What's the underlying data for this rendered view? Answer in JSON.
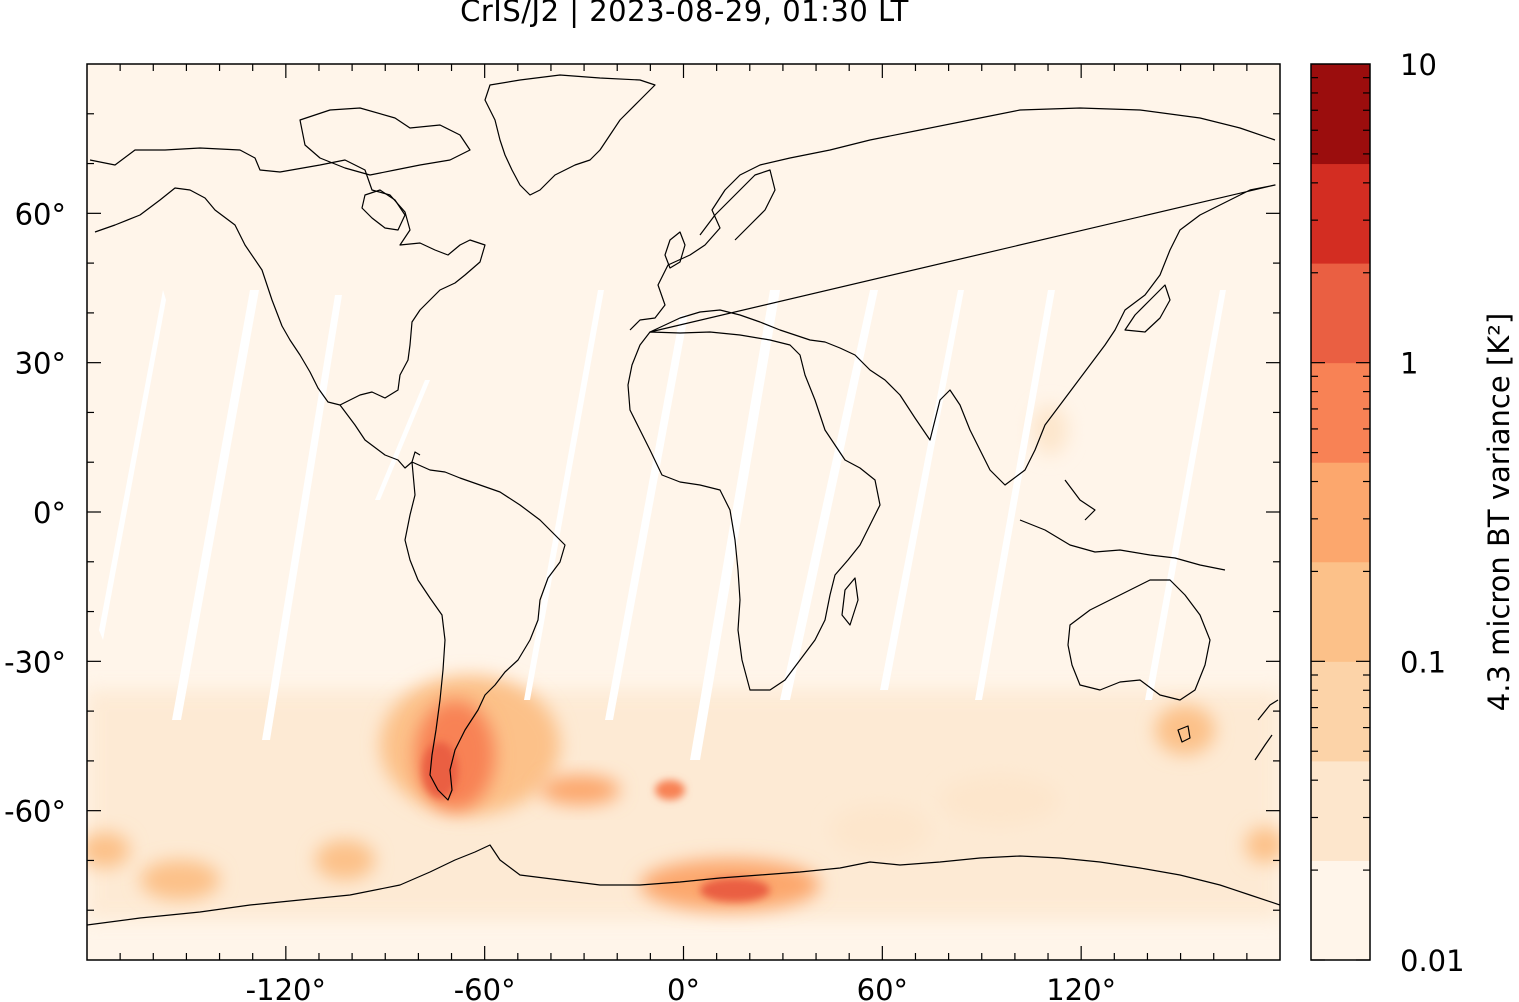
{
  "title": "CrIS/J2 | 2023-08-29, 01:30 LT",
  "map": {
    "projection": "equirectangular",
    "lon_range": [
      -180,
      180
    ],
    "lat_range": [
      -90,
      90
    ],
    "x_ticks": [
      {
        "value": -120,
        "label": "-120°"
      },
      {
        "value": -60,
        "label": "-60°"
      },
      {
        "value": 0,
        "label": "0°"
      },
      {
        "value": 60,
        "label": "60°"
      },
      {
        "value": 120,
        "label": "120°"
      }
    ],
    "y_ticks": [
      {
        "value": 60,
        "label": "60°"
      },
      {
        "value": 30,
        "label": "30°"
      },
      {
        "value": 0,
        "label": "0°"
      },
      {
        "value": -30,
        "label": "-30°"
      },
      {
        "value": -60,
        "label": "-60°"
      }
    ],
    "background_color": "#fff5ea",
    "coastline_color": "#000000"
  },
  "colorbar": {
    "label": "4.3 micron BT variance [K²]",
    "scale": "log",
    "range": [
      0.01,
      10
    ],
    "tick_labels": [
      {
        "value": 10,
        "label": "10"
      },
      {
        "value": 1,
        "label": "1"
      },
      {
        "value": 0.1,
        "label": "0.1"
      },
      {
        "value": 0.01,
        "label": "0.01"
      }
    ],
    "levels": [
      "#fff5ea",
      "#fde6cc",
      "#fcd3a8",
      "#fcc189",
      "#fca76d",
      "#f88255",
      "#ea5f42",
      "#d32d22",
      "#9b0d0d"
    ]
  }
}
